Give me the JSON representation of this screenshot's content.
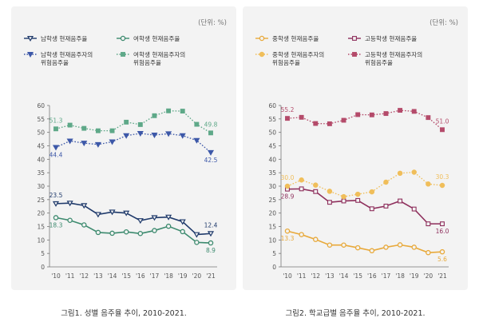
{
  "chart_data": [
    {
      "type": "line",
      "unit_label": "(단위: %)",
      "caption": "그림1. 성별 음주율 추이, 2010-2021.",
      "categories": [
        "'10",
        "'11",
        "'12",
        "'13",
        "'14",
        "'15",
        "'16",
        "'17",
        "'18",
        "'19",
        "'20",
        "'21"
      ],
      "ylim": [
        0,
        60
      ],
      "yticks": [
        0,
        5,
        10,
        15,
        20,
        25,
        30,
        35,
        40,
        45,
        50,
        55,
        60
      ],
      "grid": false,
      "legend": "top-left",
      "series": [
        {
          "name": "남학생 현재음주율",
          "color": "#1f3a6b",
          "style": "solid",
          "marker": "triangle",
          "values": [
            23.5,
            23.7,
            22.8,
            19.5,
            20.4,
            20.0,
            17.2,
            18.3,
            18.5,
            16.8,
            12.0,
            12.4
          ],
          "labels": {
            "0": "23.5",
            "11": "12.4"
          }
        },
        {
          "name": "여학생 현재음주율",
          "color": "#3c8a6e",
          "style": "solid",
          "marker": "circle",
          "values": [
            18.3,
            17.3,
            15.6,
            12.8,
            12.5,
            13.0,
            12.4,
            13.5,
            15.1,
            13.1,
            9.1,
            8.9
          ],
          "labels": {
            "0": "18.3",
            "11": "8.9"
          }
        },
        {
          "name": "남학생 현재음주자의 위험음주율",
          "color": "#3d58a8",
          "style": "dotted",
          "marker": "triangle",
          "values": [
            44.4,
            46.8,
            46.0,
            45.5,
            46.5,
            48.8,
            49.6,
            49.0,
            49.5,
            48.8,
            47.0,
            42.5
          ],
          "labels": {
            "0": "44.4",
            "11": "42.5"
          }
        },
        {
          "name": "여학생 현재음주자의 위험음주율",
          "color": "#5ea888",
          "style": "dotted",
          "marker": "square",
          "values": [
            51.3,
            52.7,
            51.5,
            50.6,
            50.6,
            53.8,
            52.9,
            56.2,
            58.0,
            57.9,
            53.0,
            49.8
          ],
          "labels": {
            "0": "51.3",
            "11": "49.8"
          }
        }
      ]
    },
    {
      "type": "line",
      "unit_label": "(단위: %)",
      "caption": "그림2. 학교급별 음주율 추이, 2010-2021.",
      "categories": [
        "'10",
        "'11",
        "'12",
        "'13",
        "'14",
        "'15",
        "'16",
        "'17",
        "'18",
        "'19",
        "'20",
        "'21"
      ],
      "ylim": [
        0,
        60
      ],
      "yticks": [
        0,
        5,
        10,
        15,
        20,
        25,
        30,
        35,
        40,
        45,
        50,
        55,
        60
      ],
      "grid": false,
      "legend": "top-left",
      "series": [
        {
          "name": "중학생 현재음주율",
          "color": "#e8a93a",
          "style": "solid",
          "marker": "circle",
          "values": [
            13.3,
            12.0,
            10.2,
            8.1,
            8.1,
            7.1,
            6.0,
            7.3,
            8.2,
            7.3,
            5.3,
            5.6
          ],
          "labels": {
            "0": "13.3",
            "11": "5.6"
          }
        },
        {
          "name": "고등학생 현재음주율",
          "color": "#8e2f5c",
          "style": "solid",
          "marker": "square",
          "values": [
            28.9,
            29.0,
            28.0,
            24.0,
            24.5,
            24.7,
            21.6,
            22.6,
            24.5,
            21.5,
            16.0,
            16.0
          ],
          "labels": {
            "0": "28.9",
            "11": "16.0"
          }
        },
        {
          "name": "중학생 현재음주자의 위험음주율",
          "color": "#f0be5a",
          "style": "dotted",
          "marker": "circle",
          "values": [
            30.0,
            32.3,
            30.4,
            28.1,
            26.1,
            27.0,
            27.9,
            31.5,
            34.8,
            35.2,
            30.8,
            30.3
          ],
          "labels": {
            "0": "30.0",
            "11": "30.3"
          }
        },
        {
          "name": "고등학생 현재음주자의 위험음주율",
          "color": "#b44b6a",
          "style": "dotted",
          "marker": "square",
          "values": [
            55.2,
            55.6,
            53.3,
            53.2,
            54.5,
            56.6,
            56.5,
            57.0,
            58.2,
            57.8,
            55.5,
            51.0
          ],
          "labels": {
            "0": "55.2",
            "11": "51.0"
          }
        }
      ]
    }
  ]
}
